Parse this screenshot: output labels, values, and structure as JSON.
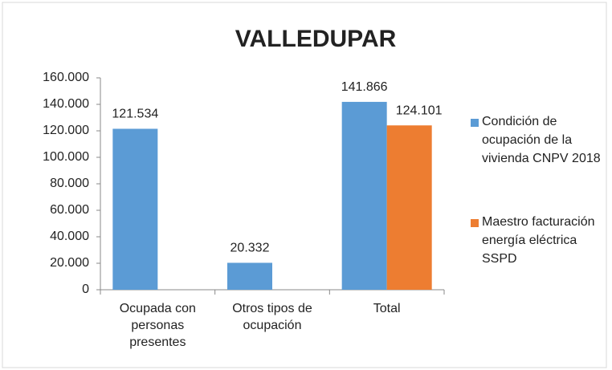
{
  "chart_data": {
    "type": "bar",
    "title": "VALLEDUPAR",
    "categories": [
      "Ocupada con personas presentes",
      "Otros tipos de ocupación",
      "Total"
    ],
    "series": [
      {
        "name": "Condición de ocupación de la vivienda CNPV 2018",
        "color": "#5b9bd5",
        "values": [
          121534,
          20332,
          141866
        ],
        "value_labels": [
          "121.534",
          "20.332",
          "141.866"
        ]
      },
      {
        "name": "Maestro facturación energía eléctrica SSPD",
        "color": "#ed7d31",
        "values": [
          null,
          null,
          124101
        ],
        "value_labels": [
          null,
          null,
          "124.101"
        ]
      }
    ],
    "ylim": [
      0,
      160000
    ],
    "yticks": [
      0,
      {
        "value": 20000,
        "label": "20.000"
      },
      {
        "value": 40000,
        "label": "40.000"
      },
      {
        "value": 60000,
        "label": "60.000"
      },
      {
        "value": 80000,
        "label": "80.000"
      },
      {
        "value": 100000,
        "label": "100.000"
      },
      {
        "value": 120000,
        "label": "120.000"
      },
      {
        "value": 140000,
        "label": "140.000"
      },
      {
        "value": 160000,
        "label": "160.000"
      }
    ],
    "legend": "right"
  }
}
